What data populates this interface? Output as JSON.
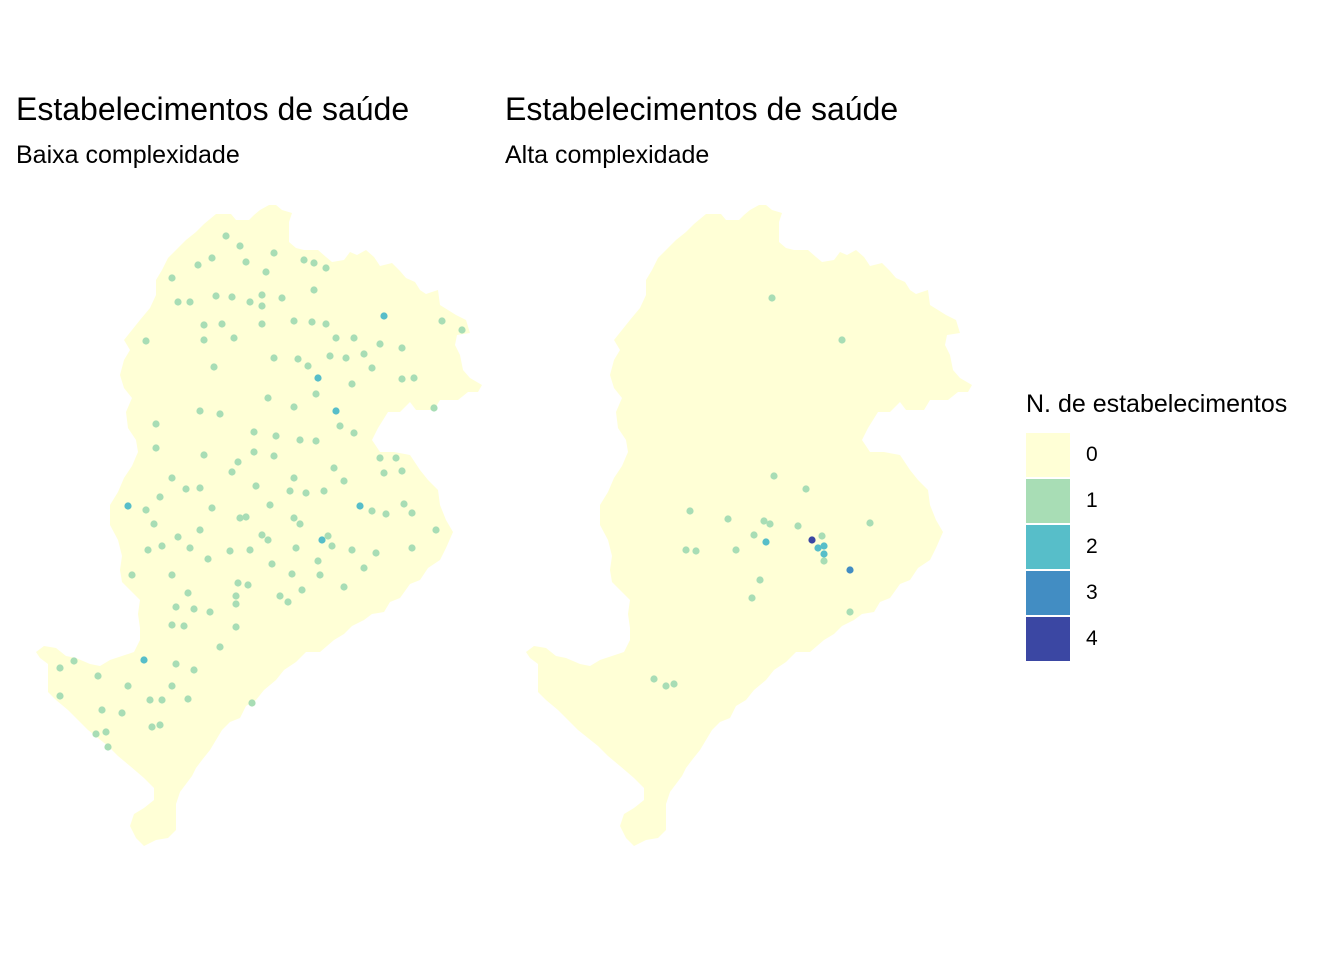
{
  "panels": [
    {
      "title": "Estabelecimentos de saúde",
      "subtitle": "Baixa complexidade"
    },
    {
      "title": "Estabelecimentos de saúde",
      "subtitle": "Alta complexidade"
    }
  ],
  "legend": {
    "title": "N. de estabelecimentos",
    "items": [
      {
        "label": "0",
        "color": "#FFFFD6"
      },
      {
        "label": "1",
        "color": "#A8DDB5"
      },
      {
        "label": "2",
        "color": "#57BEC9"
      },
      {
        "label": "3",
        "color": "#428DC3"
      },
      {
        "label": "4",
        "color": "#3B47A3"
      }
    ]
  }
}
